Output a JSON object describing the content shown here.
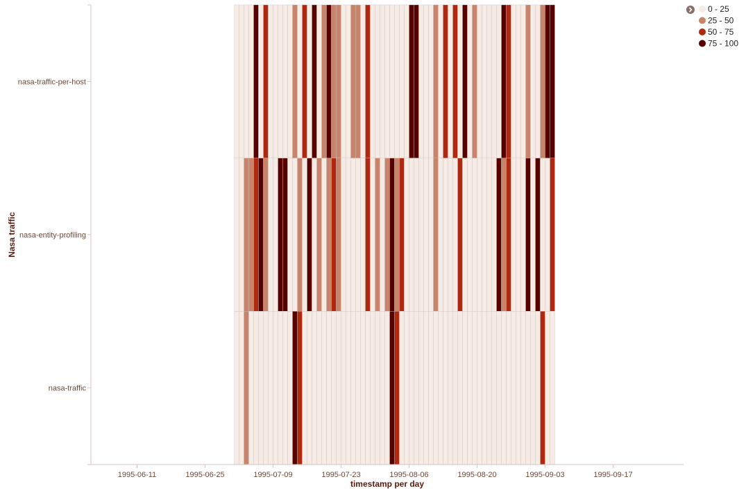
{
  "chart_data": {
    "type": "heatmap",
    "xlabel": "timestamp per day",
    "ylabel": "Nasa traffic",
    "x_tick_labels": [
      "1995-06-11",
      "1995-06-25",
      "1995-07-09",
      "1995-07-23",
      "1995-08-06",
      "1995-08-20",
      "1995-09-03",
      "1995-09-17"
    ],
    "x_domain": [
      "1995-06-01",
      "1995-09-30"
    ],
    "data_start_date": "1995-07-01",
    "rows": [
      "nasa-traffic-per-host",
      "nasa-entity-profiling",
      "nasa-traffic"
    ],
    "legend": {
      "placement": "top-right",
      "items": [
        {
          "label": "0 - 25",
          "color": "#f7ebe6"
        },
        {
          "label": "25 - 50",
          "color": "#c8836b"
        },
        {
          "label": "50 - 75",
          "color": "#b0280f"
        },
        {
          "label": "75 - 100",
          "color": "#560000"
        }
      ]
    },
    "series": [
      {
        "name": "nasa-traffic-per-host",
        "values": [
          0,
          0,
          0,
          0,
          3,
          0,
          2,
          0,
          0,
          0,
          0,
          0,
          1,
          0,
          2,
          0,
          3,
          0,
          1,
          3,
          1,
          1,
          0,
          0,
          1,
          1,
          0,
          2,
          0,
          0,
          0,
          0,
          0,
          0,
          0,
          0,
          3,
          3,
          0,
          0,
          0,
          1,
          0,
          2,
          0,
          2,
          0,
          3,
          0,
          1,
          0,
          0,
          0,
          0,
          0,
          3,
          2,
          0,
          0,
          0,
          1,
          0,
          0,
          1,
          3,
          3
        ]
      },
      {
        "name": "nasa-entity-profiling",
        "values": [
          0,
          0,
          1,
          1,
          2,
          3,
          1,
          0,
          0,
          3,
          3,
          0,
          0,
          1,
          0,
          3,
          0,
          1,
          0,
          1,
          2,
          1,
          0,
          0,
          0,
          0,
          0,
          2,
          0,
          1,
          0,
          1,
          3,
          1,
          2,
          0,
          0,
          0,
          0,
          0,
          0,
          1,
          0,
          0,
          0,
          0,
          2,
          0,
          0,
          0,
          0,
          0,
          0,
          0,
          3,
          1,
          2,
          0,
          0,
          0,
          3,
          0,
          3,
          0,
          0,
          2
        ]
      },
      {
        "name": "nasa-traffic",
        "values": [
          0,
          0,
          1,
          0,
          0,
          0,
          0,
          0,
          0,
          0,
          0,
          0,
          3,
          2,
          0,
          0,
          0,
          0,
          0,
          0,
          0,
          0,
          0,
          0,
          0,
          0,
          0,
          0,
          0,
          0,
          0,
          0,
          3,
          2,
          0,
          0,
          0,
          0,
          0,
          0,
          0,
          0,
          0,
          0,
          0,
          0,
          0,
          0,
          0,
          0,
          0,
          0,
          0,
          0,
          0,
          0,
          0,
          0,
          0,
          0,
          0,
          0,
          0,
          2,
          0,
          0
        ]
      }
    ]
  }
}
